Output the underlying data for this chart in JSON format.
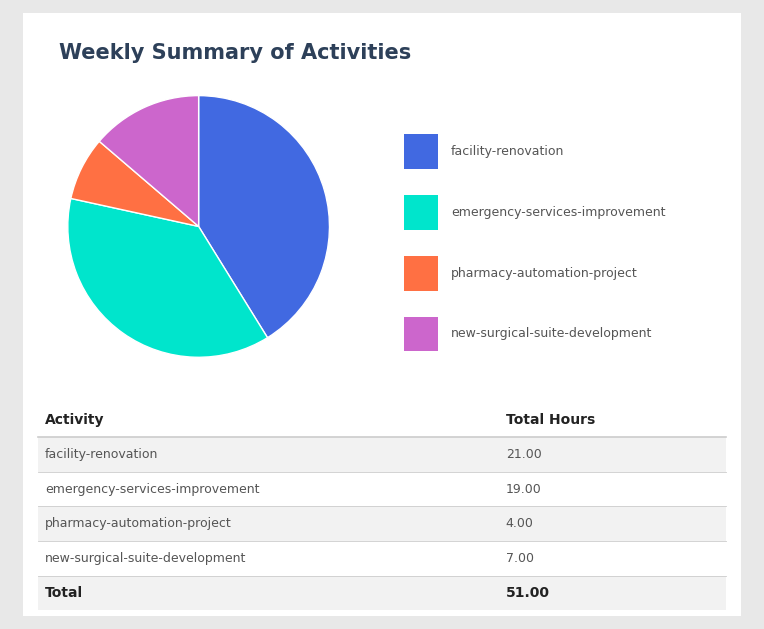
{
  "title": "Weekly Summary of Activities",
  "pie_labels": [
    "facility-renovation",
    "emergency-services-improvement",
    "pharmacy-automation-project",
    "new-surgical-suite-development"
  ],
  "pie_values": [
    21,
    19,
    4,
    7
  ],
  "pie_colors": [
    "#4169e1",
    "#00e5cc",
    "#ff7043",
    "#cc66cc"
  ],
  "table_headers": [
    "Activity",
    "Total Hours"
  ],
  "table_rows": [
    [
      "facility-renovation",
      "21.00"
    ],
    [
      "emergency-services-improvement",
      "19.00"
    ],
    [
      "pharmacy-automation-project",
      "4.00"
    ],
    [
      "new-surgical-suite-development",
      "7.00"
    ]
  ],
  "table_total": [
    "Total",
    "51.00"
  ],
  "background_color": "#e8e8e8",
  "card_color": "#ffffff",
  "title_color": "#2d4059",
  "text_color": "#555555",
  "table_header_color": "#222222",
  "row_alt_color": "#f2f2f2",
  "row_white_color": "#ffffff",
  "divider_color": "#cccccc",
  "title_fontsize": 15,
  "legend_fontsize": 9,
  "table_fontsize": 9
}
